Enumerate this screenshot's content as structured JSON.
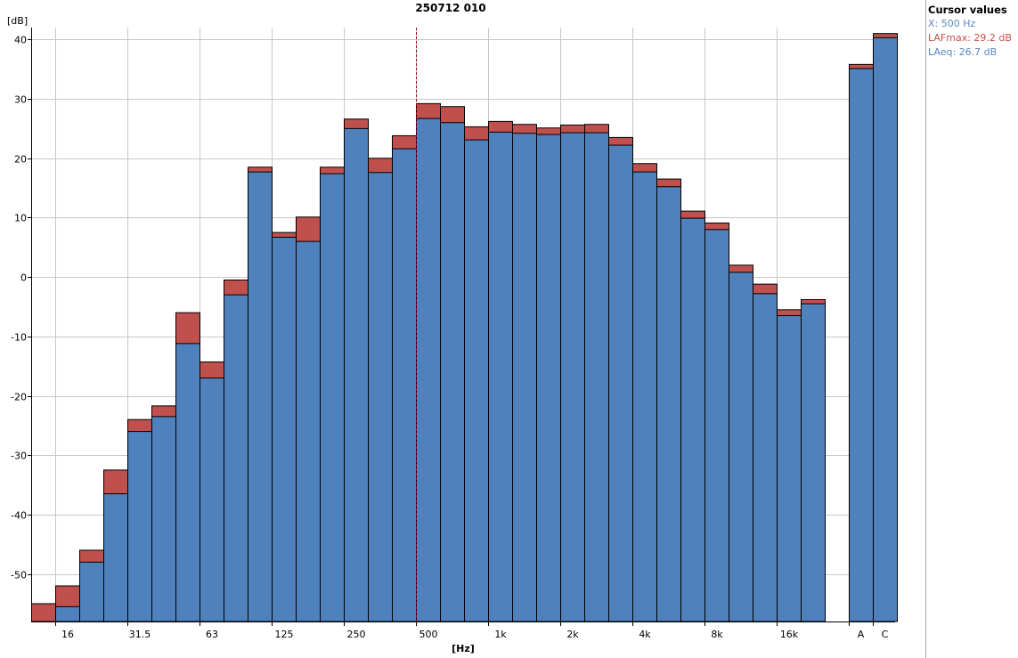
{
  "chart_data": {
    "type": "bar",
    "title": "250712 010",
    "xlabel": "[Hz]",
    "ylabel": "[dB]",
    "ylim": [
      -58,
      42
    ],
    "yticks": [
      -50,
      -40,
      -30,
      -20,
      -10,
      0,
      10,
      20,
      30,
      40
    ],
    "grid": true,
    "bands": [
      "12.5",
      "16",
      "20",
      "25",
      "31.5",
      "40",
      "50",
      "63",
      "80",
      "100",
      "125",
      "160",
      "200",
      "250",
      "315",
      "400",
      "500",
      "630",
      "800",
      "1k",
      "1.25k",
      "1.6k",
      "2k",
      "2.5k",
      "3.15k",
      "4k",
      "5k",
      "6.3k",
      "8k",
      "10k",
      "12.5k",
      "16k",
      "20k"
    ],
    "x_tick_labels": [
      "16",
      "31.5",
      "63",
      "125",
      "250",
      "500",
      "1k",
      "2k",
      "4k",
      "8k",
      "16k"
    ],
    "broadband_labels": [
      "A",
      "C"
    ],
    "cursor": "500",
    "series": [
      {
        "name": "LAFmax",
        "color": "#c0504d",
        "values": [
          -55.0,
          -52.0,
          -46.0,
          -32.5,
          -24.0,
          -21.7,
          -6.0,
          -14.3,
          -0.5,
          18.5,
          7.5,
          10.1,
          18.5,
          26.6,
          20.0,
          23.8,
          29.2,
          28.7,
          25.3,
          26.2,
          25.7,
          25.1,
          25.6,
          25.7,
          23.5,
          19.1,
          16.5,
          11.1,
          9.1,
          2.0,
          -1.2,
          -5.5,
          -3.8
        ],
        "broadband": [
          35.8,
          41.0
        ]
      },
      {
        "name": "LAeq",
        "color": "#4f81bd",
        "values": [
          null,
          -55.5,
          -48.0,
          -36.5,
          -26.0,
          -23.5,
          -11.2,
          -17.0,
          -3.0,
          17.7,
          6.7,
          6.0,
          17.4,
          25.0,
          17.6,
          21.6,
          26.7,
          26.0,
          23.1,
          24.4,
          24.2,
          24.0,
          24.3,
          24.3,
          22.2,
          17.7,
          15.2,
          9.9,
          8.0,
          0.8,
          -2.8,
          -6.5,
          -4.5
        ],
        "broadband": [
          35.1,
          40.3
        ]
      }
    ]
  },
  "legend": {
    "title": "Cursor values",
    "x_text": "X: 500 Hz",
    "max_text": "LAFmax: 29.2 dB",
    "eq_text": "LAeq: 26.7 dB"
  }
}
